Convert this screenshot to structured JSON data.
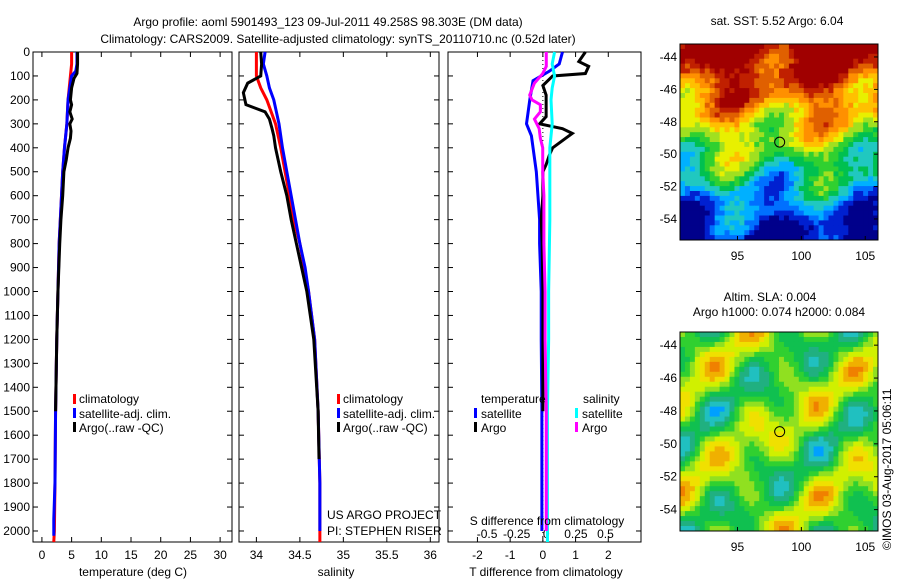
{
  "title_line1": "Argo profile: aoml 5901493_123 09-Jul-2011 49.258S 98.303E (DM data)",
  "title_line2": "Climatology: CARS2009. Satellite-adjusted climatology: synTS_20110710.nc (0.52d later)",
  "project_line1": "US ARGO PROJECT",
  "project_line2": "PI: STEPHEN RISER",
  "credit": "©IMOS 03-Aug-2017 05:06:11",
  "colors": {
    "climatology": "#ff0000",
    "satellite": "#0000ff",
    "argo": "#000000",
    "s_satellite": "#00ffff",
    "s_argo": "#ff00ff"
  },
  "chart_data": [
    {
      "type": "line",
      "id": "temperature",
      "xlabel": "temperature (deg C)",
      "ylabel": "",
      "xlim": [
        -1.5,
        32
      ],
      "ylim": [
        2046,
        0
      ],
      "xticks": [
        0,
        5,
        10,
        15,
        20,
        25,
        30
      ],
      "yticks": [
        0,
        100,
        200,
        300,
        400,
        500,
        600,
        700,
        800,
        900,
        1000,
        1100,
        1200,
        1300,
        1400,
        1500,
        1600,
        1700,
        1800,
        1900,
        2000
      ],
      "legend": [
        "climatology",
        "satellite-adj. clim.",
        "Argo(..raw -QC)"
      ],
      "series": [
        {
          "name": "climatology",
          "color": "#ff0000",
          "depth": [
            0,
            50,
            100,
            200,
            300,
            400,
            500,
            600,
            700,
            800,
            1000,
            1200,
            1500,
            1800,
            2000,
            2046
          ],
          "values": [
            5.0,
            5.0,
            4.8,
            4.4,
            4.2,
            3.8,
            3.5,
            3.3,
            3.1,
            2.9,
            2.7,
            2.5,
            2.3,
            2.2,
            2.1,
            2.0
          ]
        },
        {
          "name": "satellite-adj. clim.",
          "color": "#0000ff",
          "depth": [
            0,
            50,
            80,
            100,
            200,
            300,
            400,
            500,
            600,
            700,
            800,
            1000,
            1200,
            1500,
            1800,
            1950,
            2000,
            2020
          ],
          "values": [
            5.9,
            5.9,
            5.7,
            5.0,
            4.4,
            4.2,
            3.8,
            3.5,
            3.3,
            3.1,
            2.9,
            2.7,
            2.5,
            2.3,
            2.2,
            2.0,
            2.0,
            2.0
          ]
        },
        {
          "name": "Argo(..raw -QC)",
          "color": "#000000",
          "depth": [
            0,
            50,
            90,
            110,
            150,
            200,
            220,
            250,
            280,
            300,
            330,
            360,
            400,
            450,
            500,
            600,
            700,
            800,
            1000,
            1200,
            1500
          ],
          "values": [
            6.0,
            6.0,
            5.9,
            5.4,
            5.0,
            4.8,
            5.0,
            4.7,
            5.1,
            4.7,
            4.9,
            4.8,
            4.4,
            4.1,
            3.7,
            3.5,
            3.2,
            3.0,
            2.7,
            2.5,
            2.3
          ]
        }
      ]
    },
    {
      "type": "line",
      "id": "salinity",
      "xlabel": "salinity",
      "ylabel": "",
      "xlim": [
        33.8,
        36.1
      ],
      "ylim": [
        2046,
        0
      ],
      "xticks": [
        34,
        34.5,
        35,
        35.5,
        36
      ],
      "legend": [
        "climatology",
        "satellite-adj. clim.",
        "Argo(..raw -QC)"
      ],
      "series": [
        {
          "name": "climatology",
          "color": "#ff0000",
          "depth": [
            0,
            100,
            150,
            200,
            300,
            400,
            500,
            600,
            700,
            800,
            900,
            1000,
            1200,
            1500,
            1800,
            2000,
            2046
          ],
          "values": [
            34.0,
            34.0,
            34.05,
            34.12,
            34.22,
            34.28,
            34.33,
            34.38,
            34.43,
            34.5,
            34.55,
            34.6,
            34.67,
            34.71,
            34.73,
            34.73,
            34.73
          ]
        },
        {
          "name": "satellite-adj. clim.",
          "color": "#0000ff",
          "depth": [
            0,
            50,
            100,
            150,
            200,
            300,
            400,
            500,
            600,
            700,
            800,
            900,
            1000,
            1200,
            1500,
            1800,
            2000
          ],
          "values": [
            34.1,
            34.08,
            34.12,
            34.15,
            34.2,
            34.26,
            34.3,
            34.35,
            34.4,
            34.45,
            34.5,
            34.56,
            34.6,
            34.67,
            34.71,
            34.73,
            34.73
          ]
        },
        {
          "name": "Argo(..raw -QC)",
          "color": "#000000",
          "depth": [
            0,
            50,
            100,
            130,
            170,
            220,
            250,
            280,
            320,
            350,
            400,
            450,
            500,
            600,
            700,
            800,
            900,
            1000,
            1200,
            1500,
            1700
          ],
          "values": [
            34.05,
            34.06,
            34.05,
            33.9,
            33.85,
            33.88,
            34.1,
            34.15,
            34.18,
            34.2,
            34.22,
            34.25,
            34.28,
            34.35,
            34.4,
            34.46,
            34.52,
            34.58,
            34.66,
            34.71,
            34.72
          ]
        }
      ]
    },
    {
      "type": "line",
      "id": "differences",
      "xlabel": "T difference from climatology",
      "top_label": "S difference from climatology",
      "xlim": [
        -2.9,
        3.0
      ],
      "s_xlim": [
        -0.83,
        0.8
      ],
      "ylim": [
        2046,
        0
      ],
      "xticks": [
        -2,
        -1,
        0,
        1,
        2
      ],
      "s_xticks": [
        "-0.5",
        "-0.25",
        "0",
        "0.25",
        "0.5"
      ],
      "s_xtick_values": [
        -0.5,
        -0.25,
        0,
        0.25,
        0.5
      ],
      "legend_temperature": {
        "title": "temperature",
        "items": [
          "satellite",
          "Argo"
        ]
      },
      "legend_salinity": {
        "title": "salinity",
        "items": [
          "satellite",
          "Argo"
        ]
      },
      "series": [
        {
          "name": "T satellite",
          "color": "#0000ff",
          "axis": "T",
          "depth": [
            0,
            50,
            80,
            120,
            200,
            250,
            300,
            350,
            400,
            500,
            600,
            700,
            800,
            1000,
            1200,
            1500,
            2000
          ],
          "values": [
            0.6,
            0.5,
            0.2,
            -0.3,
            -0.4,
            -0.45,
            -0.5,
            -0.35,
            -0.3,
            -0.2,
            -0.15,
            -0.1,
            -0.1,
            -0.05,
            -0.05,
            -0.03,
            -0.03
          ]
        },
        {
          "name": "T Argo",
          "color": "#000000",
          "axis": "T",
          "depth": [
            0,
            40,
            60,
            90,
            100,
            140,
            180,
            230,
            270,
            300,
            320,
            340,
            360,
            400,
            430,
            470,
            500,
            600,
            700,
            800,
            1000,
            1200,
            1500
          ],
          "values": [
            1.3,
            1.1,
            1.4,
            1.3,
            0.3,
            0.0,
            0.1,
            0.1,
            0.1,
            -0.1,
            0.6,
            0.9,
            0.7,
            0.3,
            0.2,
            0.1,
            0.0,
            0.0,
            -0.05,
            -0.02,
            0.0,
            0.0,
            0.0
          ]
        },
        {
          "name": "S satellite",
          "color": "#00ffff",
          "axis": "S",
          "depth": [
            0,
            50,
            100,
            150,
            200,
            300,
            400,
            500,
            700,
            1000,
            1200,
            1500,
            2000,
            2046
          ],
          "values": [
            0.07,
            0.05,
            0.07,
            0.05,
            0.04,
            0.05,
            0.03,
            0.03,
            0.03,
            0.02,
            0.02,
            0.01,
            0.01,
            0.01
          ]
        },
        {
          "name": "S Argo",
          "color": "#ff00ff",
          "axis": "S",
          "depth": [
            0,
            60,
            90,
            130,
            180,
            200,
            220,
            250,
            280,
            320,
            360,
            400,
            500,
            600,
            800,
            1000,
            1200,
            1500,
            1800,
            2000
          ],
          "values": [
            0.0,
            0.0,
            -0.03,
            -0.1,
            -0.14,
            -0.12,
            -0.05,
            -0.05,
            -0.1,
            -0.06,
            -0.05,
            -0.03,
            -0.03,
            -0.02,
            -0.02,
            -0.01,
            -0.01,
            0.0,
            0.0,
            0.0
          ]
        }
      ]
    },
    {
      "type": "heatmap",
      "id": "sst_map",
      "title": "sat. SST: 5.52 Argo: 6.04",
      "xlim": [
        90.5,
        106
      ],
      "ylim": [
        -55.3,
        -43.2
      ],
      "xticks": [
        95,
        100,
        105
      ],
      "yticks": [
        -44,
        -46,
        -48,
        -50,
        -52,
        -54
      ],
      "ytick_labels": [
        "-44",
        "-46",
        "-48",
        "-50",
        "-52",
        "-54"
      ],
      "marker": [
        98.303,
        -49.258
      ]
    },
    {
      "type": "heatmap",
      "id": "sla_map",
      "title_line1": "Altim. SLA: 0.004",
      "title_line2": "Argo h1000: 0.074 h2000: 0.084",
      "xlim": [
        90.5,
        106
      ],
      "ylim": [
        -55.3,
        -43.2
      ],
      "xticks": [
        95,
        100,
        105
      ],
      "yticks": [
        -44,
        -46,
        -48,
        -50,
        -52,
        -54
      ],
      "ytick_labels": [
        "-44",
        "-46",
        "-48",
        "-50",
        "-52",
        "-54"
      ],
      "marker": [
        98.303,
        -49.258
      ]
    }
  ]
}
